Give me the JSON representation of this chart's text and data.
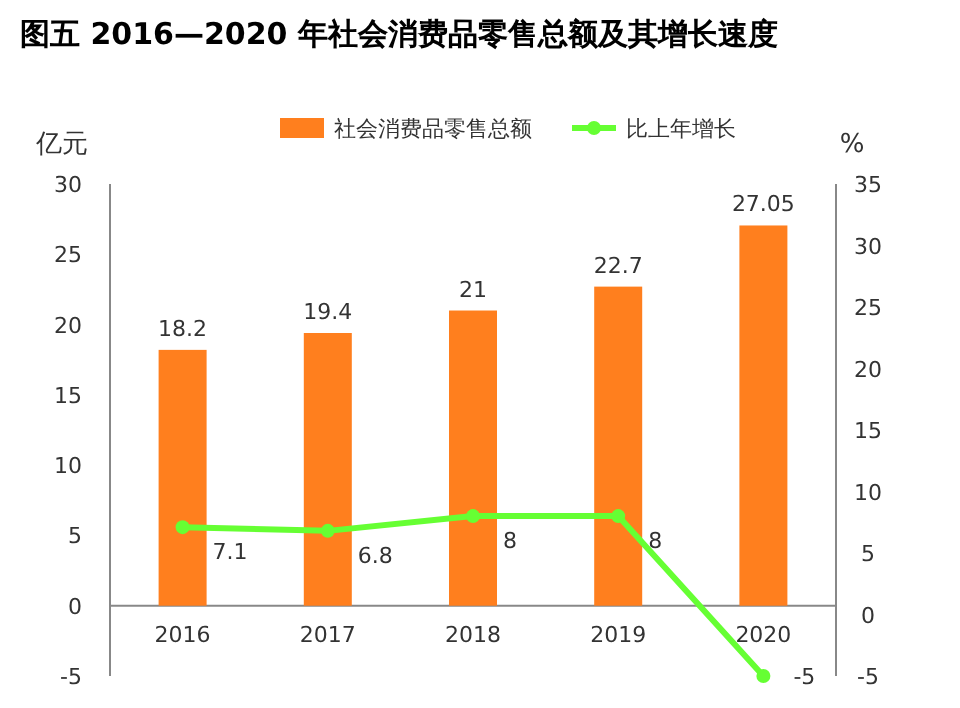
{
  "chart_data": {
    "type": "bar",
    "title": "图五  2016—2020 年社会消费品零售总额及其增长速度",
    "ylabel": "亿元",
    "y2label": "%",
    "categories": [
      "2016",
      "2017",
      "2018",
      "2019",
      "2020"
    ],
    "series": [
      {
        "name": "社会消费品零售总额",
        "color": "#ff7f1e",
        "values": [
          18.2,
          19.4,
          21,
          22.7,
          27.05
        ]
      },
      {
        "name": "比上年增长",
        "type": "line",
        "axis": "y2",
        "color": "#66ff33",
        "marker": "circle",
        "values": [
          7.1,
          6.8,
          8,
          8,
          -5
        ]
      }
    ],
    "ylim": [
      -5,
      30
    ],
    "yticks": [
      -5,
      0,
      5,
      10,
      15,
      20,
      25,
      30
    ],
    "y2lim": [
      -5,
      35
    ],
    "y2ticks": [
      -5,
      0,
      5,
      10,
      15,
      20,
      25,
      30,
      35
    ],
    "data_labels": true,
    "legend": "top",
    "grid": false
  }
}
